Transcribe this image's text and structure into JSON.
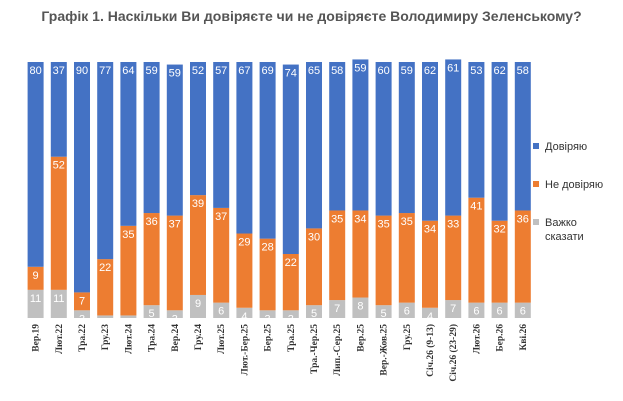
{
  "chart_data": {
    "type": "bar",
    "stacked": true,
    "title": "Графік 1. Наскільки Ви довіряєте чи не довіряєте Володимиру Зеленському?",
    "categories": [
      "Вер.19",
      "Лют.22",
      "Тра.22",
      "Гру.23",
      "Лют.24",
      "Тра.24",
      "Вер.24",
      "Гру.24",
      "Лют.25",
      "Лют.-Бер.25",
      "Бер.25",
      "Тра.25",
      "Тра.-Чер.25",
      "Лип.-Сер.25",
      "Вер.25",
      "Вер.-Жов.25",
      "Гру.25",
      "Січ.26 (9-13)",
      "Січ.26 (23-29)",
      "Лют.26",
      "Бер.26",
      "Кві.26"
    ],
    "series": [
      {
        "name": "Важко сказати",
        "color": "#c0c0c0",
        "values": [
          11,
          11,
          3,
          1,
          1,
          5,
          3,
          9,
          6,
          4,
          3,
          3,
          5,
          7,
          8,
          5,
          6,
          4,
          7,
          6,
          6,
          6
        ]
      },
      {
        "name": "Не довіряю",
        "color": "#ed7d31",
        "values": [
          9,
          52,
          7,
          22,
          35,
          36,
          37,
          39,
          37,
          29,
          28,
          22,
          30,
          35,
          34,
          35,
          35,
          34,
          33,
          41,
          32,
          36
        ]
      },
      {
        "name": "Довіряю",
        "color": "#4472c4",
        "values": [
          80,
          37,
          90,
          77,
          64,
          59,
          59,
          52,
          57,
          67,
          69,
          74,
          65,
          58,
          59,
          60,
          59,
          62,
          61,
          53,
          62,
          58
        ]
      }
    ],
    "legend_order": [
      "Довіряю",
      "Не довіряю",
      "Важко сказати"
    ],
    "legend_position": "right",
    "ylim": [
      0,
      100
    ]
  }
}
